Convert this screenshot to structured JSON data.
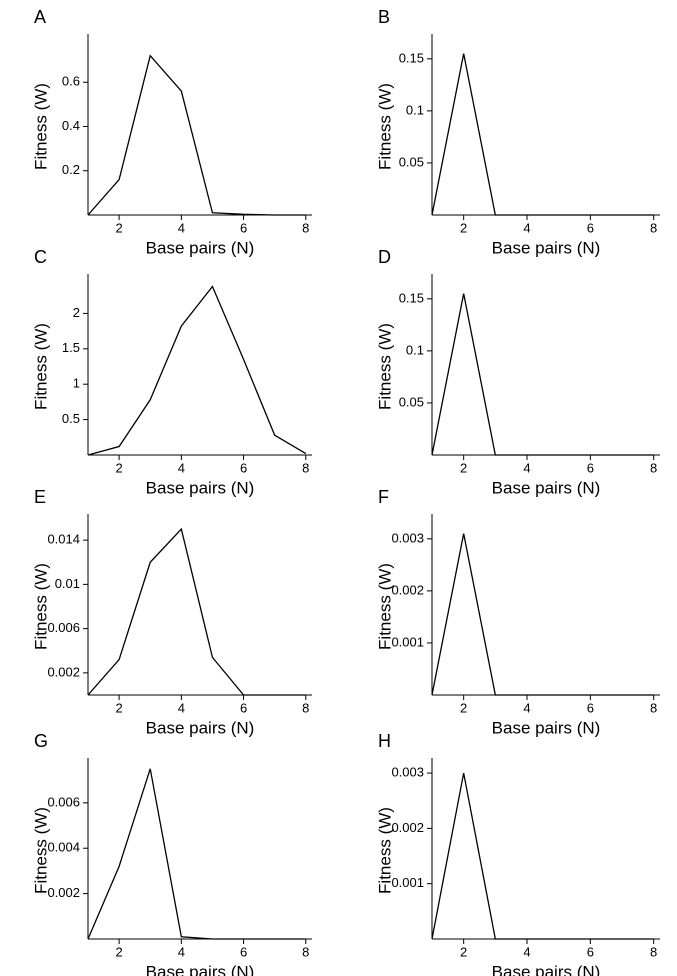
{
  "chart_data": [
    {
      "type": "line",
      "panel": "A",
      "xlabel": "Base pairs (N)",
      "ylabel": "Fitness (W)",
      "x": [
        1,
        2,
        3,
        4,
        5,
        6,
        7,
        8
      ],
      "values": [
        0,
        0.16,
        0.72,
        0.56,
        0.01,
        0.003,
        0,
        0
      ],
      "xlim": [
        1,
        8.2
      ],
      "xticks": [
        2,
        4,
        6,
        8
      ],
      "ylim": [
        0,
        0.8
      ],
      "yticks": [
        0.2,
        0.4,
        0.6
      ],
      "color": "#000000"
    },
    {
      "type": "line",
      "panel": "B",
      "xlabel": "Base pairs (N)",
      "ylabel": "Fitness (W)",
      "x": [
        1,
        2,
        3,
        4,
        5,
        6,
        7,
        8
      ],
      "values": [
        0,
        0.155,
        0,
        0,
        0,
        0,
        0,
        0
      ],
      "xlim": [
        1,
        8.2
      ],
      "xticks": [
        2,
        4,
        6,
        8
      ],
      "ylim": [
        0,
        0.17
      ],
      "yticks": [
        0.05,
        0.1,
        0.15
      ],
      "color": "#000000"
    },
    {
      "type": "line",
      "panel": "C",
      "xlabel": "Base pairs (N)",
      "ylabel": "Fitness (W)",
      "x": [
        1,
        2,
        3,
        4,
        5,
        6,
        7,
        8
      ],
      "values": [
        0,
        0.12,
        0.78,
        1.82,
        2.38,
        1.35,
        0.28,
        0.02
      ],
      "xlim": [
        1,
        8.2
      ],
      "xticks": [
        2,
        4,
        6,
        8
      ],
      "ylim": [
        0,
        2.5
      ],
      "yticks": [
        0.5,
        1,
        1.5,
        2
      ],
      "color": "#000000"
    },
    {
      "type": "line",
      "panel": "D",
      "xlabel": "Base pairs (N)",
      "ylabel": "Fitness (W)",
      "x": [
        1,
        2,
        3,
        4,
        5,
        6,
        7,
        8
      ],
      "values": [
        0,
        0.155,
        0,
        0,
        0,
        0,
        0,
        0
      ],
      "xlim": [
        1,
        8.2
      ],
      "xticks": [
        2,
        4,
        6,
        8
      ],
      "ylim": [
        0,
        0.17
      ],
      "yticks": [
        0.05,
        0.1,
        0.15
      ],
      "color": "#000000"
    },
    {
      "type": "line",
      "panel": "E",
      "xlabel": "Base pairs (N)",
      "ylabel": "Fitness (W)",
      "x": [
        1,
        2,
        3,
        4,
        5,
        6,
        7,
        8
      ],
      "values": [
        0,
        0.0032,
        0.012,
        0.015,
        0.0034,
        0,
        0,
        0
      ],
      "xlim": [
        1,
        8.2
      ],
      "xticks": [
        2,
        4,
        6,
        8
      ],
      "ylim": [
        0,
        0.016
      ],
      "yticks": [
        0.002,
        0.006,
        0.01,
        0.014
      ],
      "color": "#000000"
    },
    {
      "type": "line",
      "panel": "F",
      "xlabel": "Base pairs (N)",
      "ylabel": "Fitness (W)",
      "x": [
        1,
        2,
        3,
        4,
        5,
        6,
        7,
        8
      ],
      "values": [
        0,
        0.0031,
        0,
        0,
        0,
        0,
        0,
        0
      ],
      "xlim": [
        1,
        8.2
      ],
      "xticks": [
        2,
        4,
        6,
        8
      ],
      "ylim": [
        0,
        0.0034
      ],
      "yticks": [
        0.001,
        0.002,
        0.003
      ],
      "color": "#000000"
    },
    {
      "type": "line",
      "panel": "G",
      "xlabel": "Base pairs (N)",
      "ylabel": "Fitness (W)",
      "x": [
        1,
        2,
        3,
        4,
        5,
        6,
        7,
        8
      ],
      "values": [
        0,
        0.0032,
        0.0075,
        0.0001,
        0,
        0,
        0,
        0
      ],
      "xlim": [
        1,
        8.2
      ],
      "xticks": [
        2,
        4,
        6,
        8
      ],
      "ylim": [
        0,
        0.0078
      ],
      "yticks": [
        0.002,
        0.004,
        0.006
      ],
      "color": "#000000"
    },
    {
      "type": "line",
      "panel": "H",
      "xlabel": "Base pairs (N)",
      "ylabel": "Fitness (W)",
      "x": [
        1,
        2,
        3,
        4,
        5,
        6,
        7,
        8
      ],
      "values": [
        0,
        0.003,
        0,
        0,
        0,
        0,
        0,
        0
      ],
      "xlim": [
        1,
        8.2
      ],
      "xticks": [
        2,
        4,
        6,
        8
      ],
      "ylim": [
        0,
        0.0032
      ],
      "yticks": [
        0.001,
        0.002,
        0.003
      ],
      "color": "#000000"
    }
  ]
}
